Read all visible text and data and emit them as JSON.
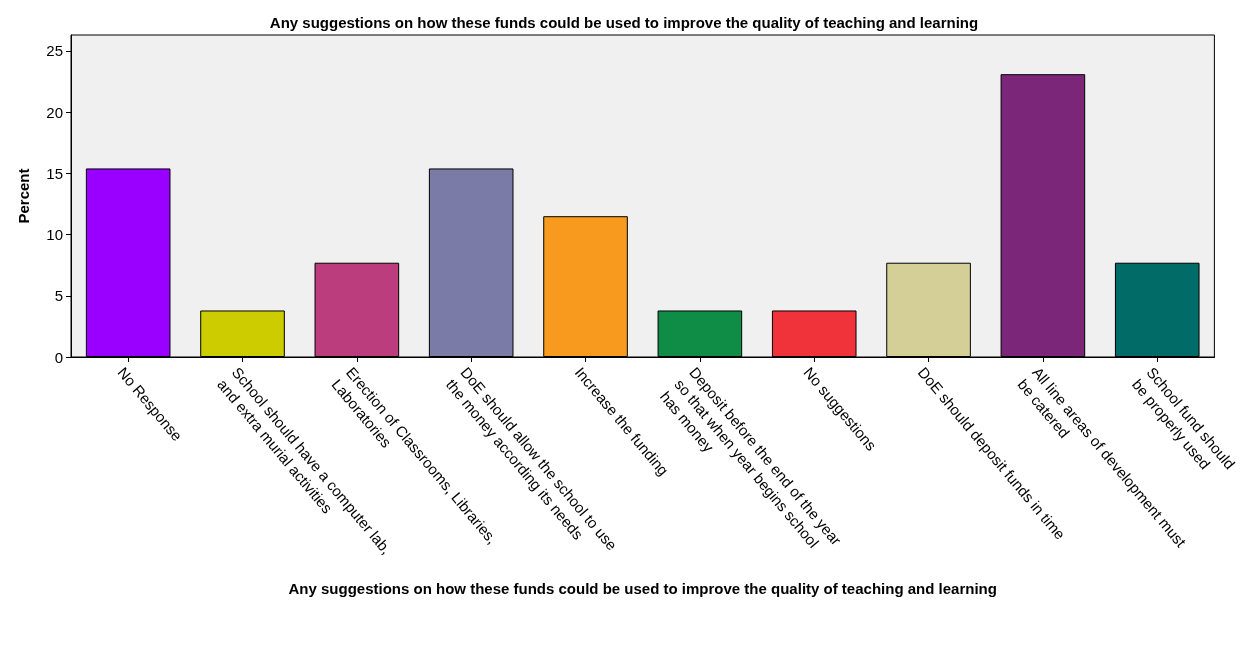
{
  "chart_data": {
    "type": "bar",
    "title": "Any suggestions on how these funds could be used to improve the quality of teaching and learning",
    "xlabel": "Any suggestions on how these funds could be used to improve the quality of teaching and learning",
    "ylabel": "Percent",
    "categories": [
      "No Response",
      "School should have a computer lab,\nand extra murial activities",
      "Erection of Classrooms, Libraries,\nLaboratories",
      "DoE should allow the school to use\nthe money according its needs",
      "Increase the funding",
      "Deposit before the end of the year\nso that when year begins school\nhas money",
      "No suggestions",
      "DoE should deposit funds in time",
      "All line areas of development must\nbe catered",
      "School fund should\nbe properly used"
    ],
    "values": [
      15.4,
      3.8,
      7.7,
      15.4,
      11.5,
      3.8,
      3.8,
      7.7,
      23.1,
      7.7
    ],
    "colors": [
      "#9900ff",
      "#cccc00",
      "#bb3d7d",
      "#7b7ba8",
      "#f79a1e",
      "#0f8c46",
      "#f0333a",
      "#d4cf97",
      "#7b2679",
      "#006b67"
    ],
    "ylim": [
      0,
      26.3
    ],
    "yticks": [
      0,
      5,
      10,
      15,
      20,
      25
    ]
  }
}
